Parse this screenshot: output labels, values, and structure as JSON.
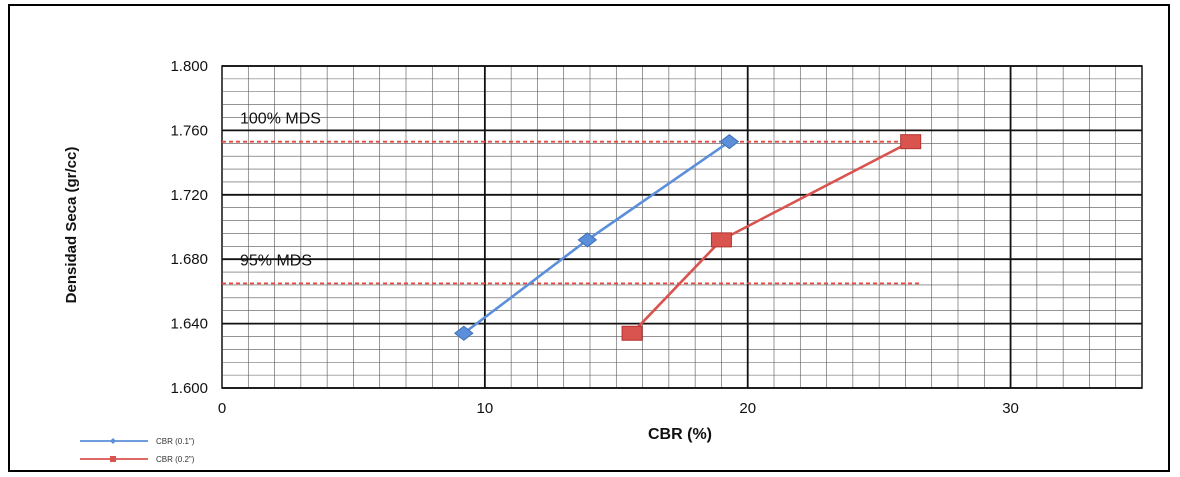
{
  "colors": {
    "series_blue": "#5b8fd9",
    "series_red": "#d9534f",
    "reference_line": "#e8483f",
    "grid_major": "#111111",
    "grid_minor": "#555555"
  },
  "chart_data": {
    "type": "line",
    "title": "",
    "xlabel": "CBR  (%)",
    "ylabel": "Densidad Seca (gr/cc)",
    "xlim": [
      0,
      35
    ],
    "ylim": [
      1.6,
      1.8
    ],
    "x_ticks": [
      "0",
      "10",
      "20",
      "30"
    ],
    "y_ticks": [
      "1.600",
      "1.640",
      "1.680",
      "1.720",
      "1.760",
      "1.800"
    ],
    "grid": true,
    "legend_position": "bottom-left",
    "series": [
      {
        "name": "CBR (0.1\")",
        "color": "#5b8fd9",
        "marker": "diamond",
        "x": [
          9.2,
          13.9,
          19.3
        ],
        "y": [
          1.634,
          1.692,
          1.753
        ]
      },
      {
        "name": "CBR (0.2\")",
        "color": "#d9534f",
        "marker": "square",
        "x": [
          15.6,
          19.0,
          26.2
        ],
        "y": [
          1.634,
          1.692,
          1.753
        ]
      }
    ],
    "reference_lines": [
      {
        "label": "100% MDS",
        "y": 1.753
      },
      {
        "label": "95% MDS",
        "y": 1.665
      }
    ]
  }
}
